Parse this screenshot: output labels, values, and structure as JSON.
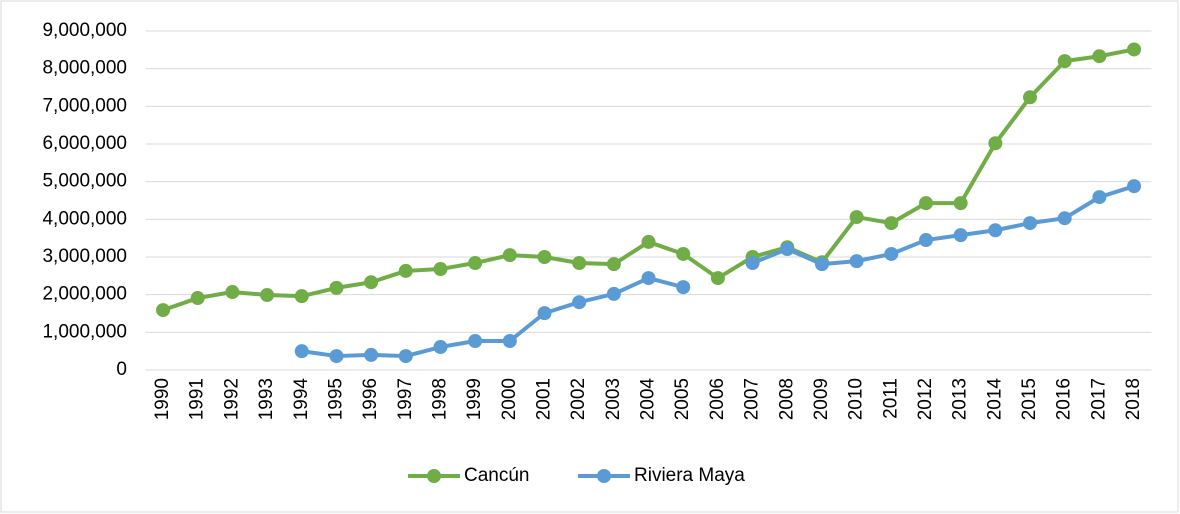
{
  "chart_data": {
    "type": "line",
    "categories": [
      "1990",
      "1991",
      "1992",
      "1993",
      "1994",
      "1995",
      "1996",
      "1997",
      "1998",
      "1999",
      "2000",
      "2001",
      "2002",
      "2003",
      "2004",
      "2005",
      "2006",
      "2007",
      "2008",
      "2009",
      "2010",
      "2011",
      "2012",
      "2013",
      "2014",
      "2015",
      "2016",
      "2017",
      "2018"
    ],
    "series": [
      {
        "name": "Cancún",
        "color": "#70ad47",
        "values": [
          1590000,
          1910000,
          2070000,
          1990000,
          1960000,
          2180000,
          2330000,
          2630000,
          2680000,
          2840000,
          3050000,
          3000000,
          2840000,
          2810000,
          3400000,
          3080000,
          2440000,
          3000000,
          3260000,
          2860000,
          4060000,
          3900000,
          4430000,
          4430000,
          6020000,
          7240000,
          8200000,
          8330000,
          8510000
        ]
      },
      {
        "name": "Riviera Maya",
        "color": "#5b9bd5",
        "values": [
          null,
          null,
          null,
          null,
          500000,
          370000,
          400000,
          370000,
          610000,
          770000,
          770000,
          1510000,
          1800000,
          2020000,
          2440000,
          2200000,
          null,
          2840000,
          3210000,
          2810000,
          2890000,
          3080000,
          3450000,
          3580000,
          3710000,
          3900000,
          4030000,
          4590000,
          4880000
        ]
      }
    ],
    "ylim": [
      0,
      9000000
    ],
    "yticks": [
      0,
      {
        "value": 1000000,
        "label": "1,000,000"
      },
      {
        "value": 2000000,
        "label": "2,000,000"
      },
      {
        "value": 3000000,
        "label": "3,000,000"
      },
      {
        "value": 4000000,
        "label": "4,000,000"
      },
      {
        "value": 5000000,
        "label": "5,000,000"
      },
      {
        "value": 6000000,
        "label": "6,000,000"
      },
      {
        "value": 7000000,
        "label": "7,000,000"
      },
      {
        "value": 8000000,
        "label": "8,000,000"
      },
      {
        "value": 9000000,
        "label": "9,000,000"
      }
    ],
    "grid": true,
    "legend": "bottom"
  }
}
